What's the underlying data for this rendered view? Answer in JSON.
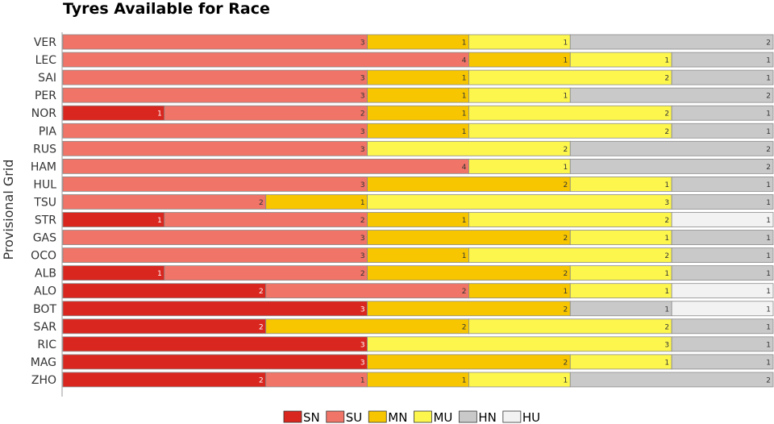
{
  "chart_data": {
    "type": "bar",
    "orientation": "horizontal",
    "stacked": true,
    "title": "Tyres Available for Race",
    "xlabel": "",
    "ylabel": "Provisional Grid",
    "xlim": [
      0,
      7
    ],
    "grid": false,
    "legend_position": "bottom",
    "colors": {
      "SN": "#d9261f",
      "SU": "#f07467",
      "MN": "#f7c600",
      "MU": "#fdf64d",
      "HN": "#c9c9c9",
      "HU": "#f2f2f2"
    },
    "categories": [
      "VER",
      "LEC",
      "SAI",
      "PER",
      "NOR",
      "PIA",
      "RUS",
      "HAM",
      "HUL",
      "TSU",
      "STR",
      "GAS",
      "OCO",
      "ALB",
      "ALO",
      "BOT",
      "SAR",
      "RIC",
      "MAG",
      "ZHO"
    ],
    "series": [
      {
        "name": "SN",
        "values": [
          0,
          0,
          0,
          0,
          1,
          0,
          0,
          0,
          0,
          0,
          1,
          0,
          0,
          1,
          2,
          3,
          2,
          3,
          3,
          2
        ]
      },
      {
        "name": "SU",
        "values": [
          3,
          4,
          3,
          3,
          2,
          3,
          3,
          4,
          3,
          2,
          2,
          3,
          3,
          2,
          2,
          0,
          0,
          0,
          0,
          1
        ]
      },
      {
        "name": "MN",
        "values": [
          1,
          1,
          1,
          1,
          1,
          1,
          0,
          0,
          2,
          1,
          1,
          2,
          1,
          2,
          1,
          2,
          2,
          0,
          2,
          1
        ]
      },
      {
        "name": "MU",
        "values": [
          1,
          1,
          2,
          1,
          2,
          2,
          2,
          1,
          1,
          3,
          2,
          1,
          2,
          1,
          1,
          0,
          2,
          3,
          1,
          1
        ]
      },
      {
        "name": "HN",
        "values": [
          2,
          1,
          1,
          2,
          1,
          1,
          2,
          2,
          1,
          1,
          0,
          1,
          1,
          1,
          0,
          1,
          1,
          1,
          1,
          2
        ]
      },
      {
        "name": "HU",
        "values": [
          0,
          0,
          0,
          0,
          0,
          0,
          0,
          0,
          0,
          0,
          1,
          0,
          0,
          0,
          1,
          1,
          0,
          0,
          0,
          0
        ]
      }
    ]
  }
}
